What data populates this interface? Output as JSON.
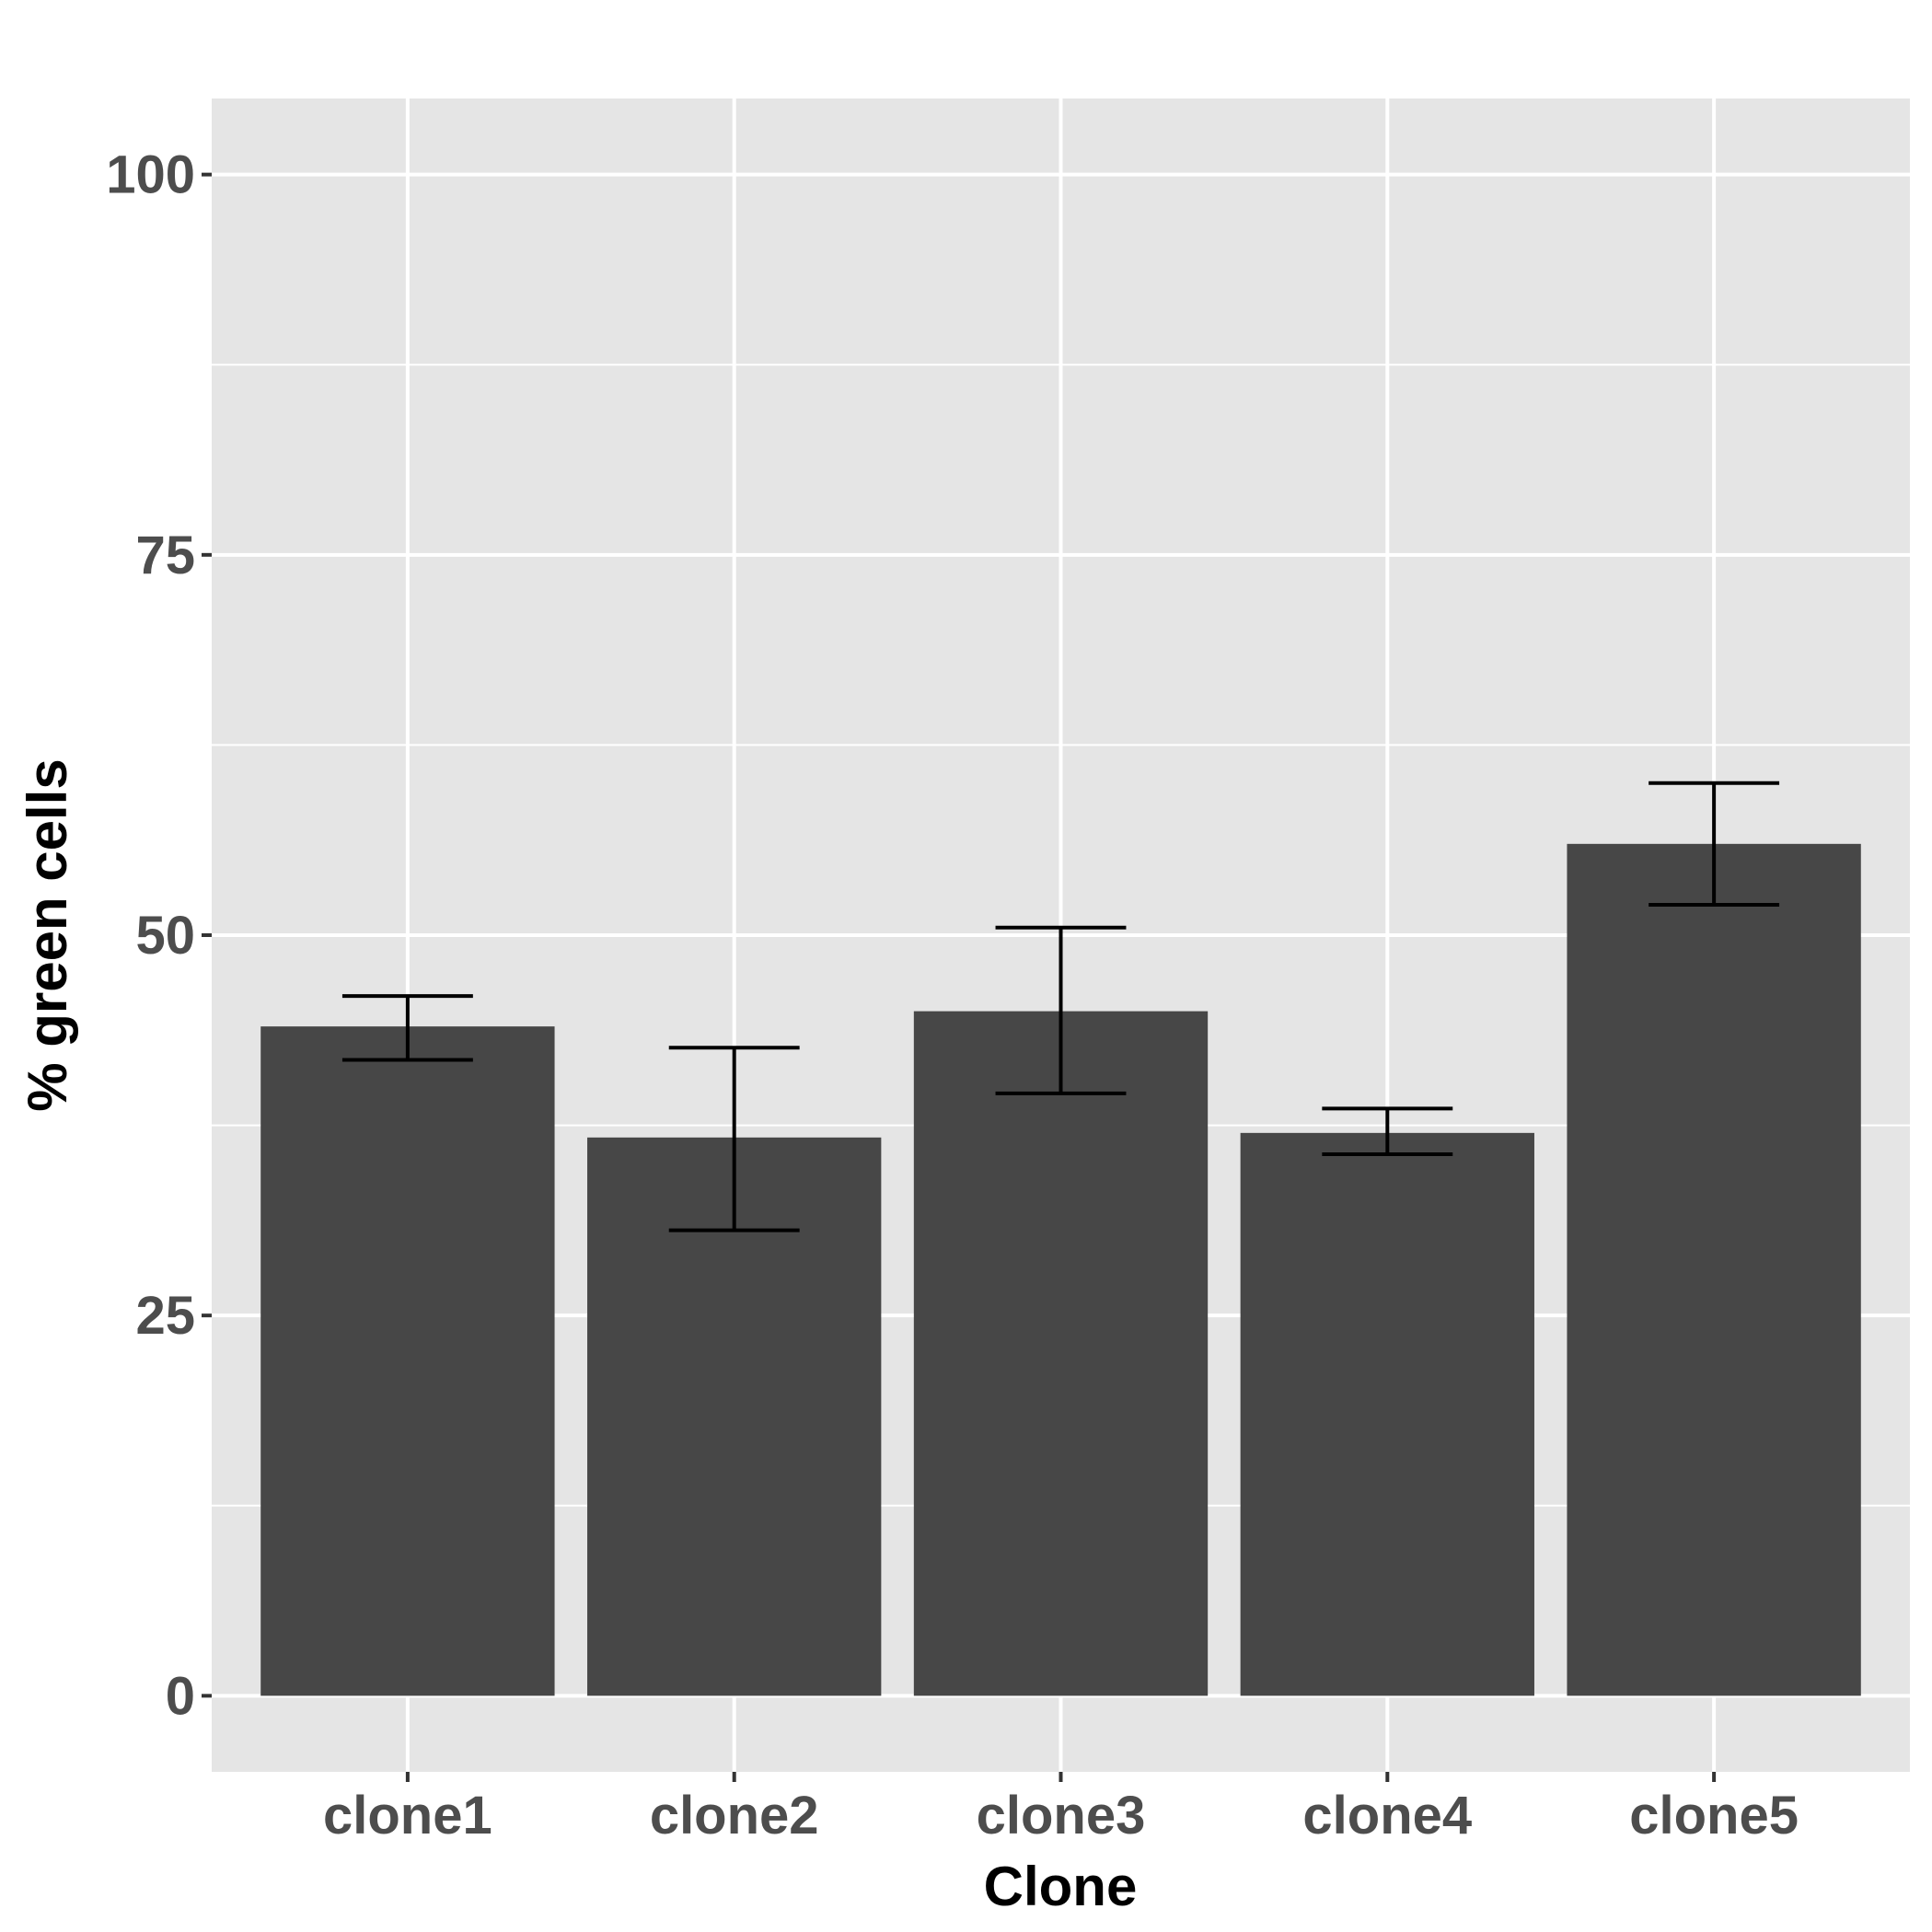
{
  "chart_data": {
    "type": "bar",
    "title": "",
    "xlabel": "Clone",
    "ylabel": "% green cells",
    "categories": [
      "clone1",
      "clone2",
      "clone3",
      "clone4",
      "clone5"
    ],
    "values": [
      44,
      36.7,
      45,
      37,
      56
    ],
    "errors": [
      {
        "low": 41.8,
        "high": 46
      },
      {
        "low": 30.6,
        "high": 42.6
      },
      {
        "low": 39.6,
        "high": 50.5
      },
      {
        "low": 35.6,
        "high": 38.6
      },
      {
        "low": 52,
        "high": 60
      }
    ],
    "ylim": [
      -5,
      105
    ],
    "yticks": [
      0,
      25,
      50,
      75,
      100
    ],
    "grid": true,
    "colors": {
      "bar": "#474747",
      "panel": "#e5e5e5",
      "grid": "#ffffff",
      "errorbar": "#000000"
    }
  }
}
